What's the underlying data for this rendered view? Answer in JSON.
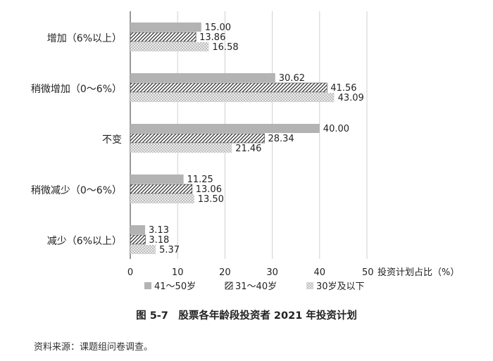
{
  "chart_data": {
    "type": "bar",
    "orientation": "horizontal",
    "categories": [
      "增加（6%以上）",
      "稍微增加（0～6%）",
      "不变",
      "稍微减少（0～6%）",
      "减少（6%以上）"
    ],
    "series": [
      {
        "name": "41～50岁",
        "values": [
          15.0,
          30.62,
          40.0,
          11.25,
          3.13
        ],
        "color": "#b3b3b3",
        "pattern": "solid"
      },
      {
        "name": "31～40岁",
        "values": [
          13.86,
          41.56,
          28.34,
          13.06,
          3.18
        ],
        "color": "#333333",
        "pattern": "diagonal-hatch"
      },
      {
        "name": "30岁及以下",
        "values": [
          16.58,
          43.09,
          21.46,
          13.5,
          5.37
        ],
        "color": "#d9d9d9",
        "pattern": "checker"
      }
    ],
    "value_labels": [
      [
        "15.00",
        "30.62",
        "40.00",
        "11.25",
        "3.13"
      ],
      [
        "13.86",
        "41.56",
        "28.34",
        "13.06",
        "3.18"
      ],
      [
        "16.58",
        "43.09",
        "21.46",
        "13.50",
        "5.37"
      ]
    ],
    "x_ticks": [
      "0",
      "10",
      "20",
      "30",
      "40",
      "50"
    ],
    "xlim": [
      0,
      50
    ],
    "xlabel": "投资计划占比（%）",
    "grid": true,
    "legend_position": "bottom"
  },
  "caption": "图 5-7　股票各年龄段投资者 2021 年投资计划",
  "source": "资料来源：课题组问卷调查。"
}
